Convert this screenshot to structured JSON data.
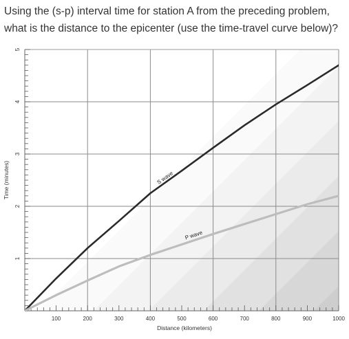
{
  "question": {
    "line1": "Using the (s-p) interval time for station A from the preceding problem,",
    "line2": "what is the distance to the epicenter (use the time-travel curve below)?"
  },
  "chart_data": {
    "type": "line",
    "xlabel": "Distance (kilometers)",
    "ylabel": "Time (minutes)",
    "xlim": [
      0,
      1000
    ],
    "ylim": [
      0,
      5
    ],
    "x_ticks": [
      "100",
      "200",
      "300",
      "400",
      "500",
      "600",
      "700",
      "800",
      "900",
      "1000"
    ],
    "y_ticks": [
      "1",
      "2",
      "3",
      "4",
      "5"
    ],
    "grid": true,
    "series": [
      {
        "name": "S wave",
        "color": "#2a2a2a",
        "x": [
          0,
          100,
          200,
          300,
          400,
          500,
          600,
          700,
          800,
          900,
          1000
        ],
        "y": [
          0,
          0.62,
          1.2,
          1.72,
          2.25,
          2.68,
          3.12,
          3.55,
          3.95,
          4.32,
          4.7
        ]
      },
      {
        "name": "P wave",
        "color": "#bdbdbd",
        "x": [
          0,
          100,
          200,
          300,
          400,
          500,
          600,
          700,
          800,
          900,
          1000
        ],
        "y": [
          0,
          0.3,
          0.58,
          0.85,
          1.07,
          1.27,
          1.47,
          1.66,
          1.85,
          2.04,
          2.2
        ]
      }
    ]
  }
}
